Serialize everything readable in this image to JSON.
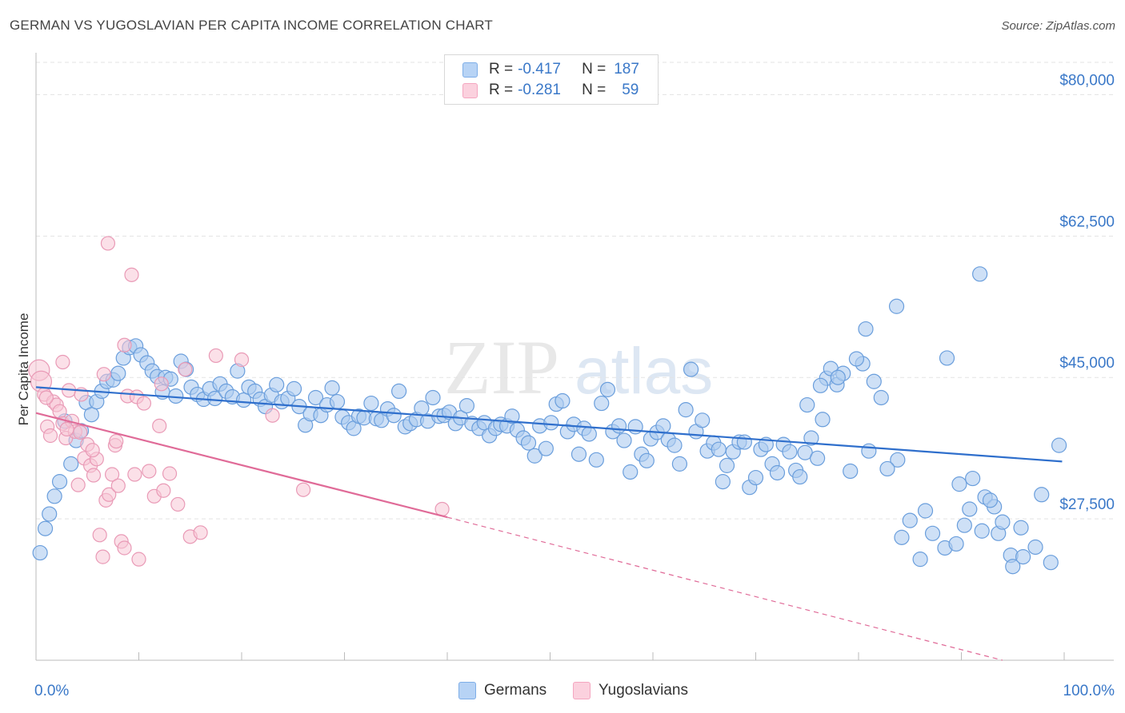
{
  "header": {
    "title": "GERMAN VS YUGOSLAVIAN PER CAPITA INCOME CORRELATION CHART",
    "source": "Source: ZipAtlas.com"
  },
  "watermark": {
    "zip": "ZIP",
    "atlas": "atlas"
  },
  "legend_top": {
    "rows": [
      {
        "r_label": "R =",
        "r_value": "-0.417",
        "n_label": "N =",
        "n_value": "187",
        "color": "#7eaee8"
      },
      {
        "r_label": "R =",
        "r_value": "-0.281",
        "n_label": "N =",
        "n_value": "59",
        "color": "#f4a6c0"
      }
    ]
  },
  "legend_bottom": {
    "items": [
      "Germans",
      "Yugoslavians"
    ]
  },
  "colors": {
    "german_fill": "#aecbf0",
    "german_stroke": "#6a9edc",
    "german_line": "#2f6fcc",
    "yugo_fill": "#f7c6d6",
    "yugo_stroke": "#e99ab6",
    "yugo_line": "#e06b98",
    "tick_label": "#3a78c8",
    "grid": "#e3e3e3"
  },
  "chart_data": {
    "type": "scatter",
    "title": "GERMAN VS YUGOSLAVIAN PER CAPITA INCOME CORRELATION CHART",
    "xlabel": "",
    "ylabel": "Per Capita Income",
    "xlim": [
      0,
      100
    ],
    "ylim": [
      10000,
      84000
    ],
    "x_tick_labels": [
      "0.0%",
      "100.0%"
    ],
    "y_ticks": [
      27500,
      45000,
      62500,
      80000
    ],
    "y_tick_labels": [
      "$27,500",
      "$45,000",
      "$62,500",
      "$80,000"
    ],
    "grid": true,
    "legend_position": "bottom",
    "series": [
      {
        "name": "Germans",
        "r": -0.417,
        "n": 187,
        "trend": {
          "x": [
            0,
            99.8
          ],
          "y": [
            43800,
            34600
          ]
        },
        "points": [
          [
            0.4,
            23300
          ],
          [
            0.9,
            26300
          ],
          [
            1.3,
            28100
          ],
          [
            1.8,
            30300
          ],
          [
            2.3,
            32100
          ],
          [
            2.8,
            39600
          ],
          [
            3.4,
            34300
          ],
          [
            3.9,
            37200
          ],
          [
            4.4,
            38400
          ],
          [
            4.9,
            41900
          ],
          [
            5.4,
            40400
          ],
          [
            5.9,
            42000
          ],
          [
            6.4,
            43300
          ],
          [
            6.9,
            44500
          ],
          [
            7.5,
            44700
          ],
          [
            8.0,
            45500
          ],
          [
            8.5,
            47400
          ],
          [
            9.1,
            48700
          ],
          [
            9.7,
            48900
          ],
          [
            10.2,
            47800
          ],
          [
            10.8,
            46800
          ],
          [
            11.3,
            45800
          ],
          [
            11.8,
            45100
          ],
          [
            12.3,
            43200
          ],
          [
            12.6,
            45000
          ],
          [
            13.1,
            44800
          ],
          [
            13.6,
            42700
          ],
          [
            14.1,
            47000
          ],
          [
            14.6,
            46000
          ],
          [
            15.1,
            43800
          ],
          [
            15.7,
            42900
          ],
          [
            16.3,
            42300
          ],
          [
            16.9,
            43600
          ],
          [
            17.4,
            42400
          ],
          [
            17.9,
            44200
          ],
          [
            18.5,
            43300
          ],
          [
            19.1,
            42600
          ],
          [
            19.6,
            45800
          ],
          [
            20.2,
            42200
          ],
          [
            20.7,
            43800
          ],
          [
            21.3,
            43300
          ],
          [
            21.8,
            42300
          ],
          [
            22.3,
            41400
          ],
          [
            22.9,
            42800
          ],
          [
            23.4,
            44100
          ],
          [
            23.9,
            42000
          ],
          [
            24.5,
            42400
          ],
          [
            25.1,
            43600
          ],
          [
            25.6,
            41400
          ],
          [
            26.2,
            39100
          ],
          [
            26.7,
            40500
          ],
          [
            27.2,
            42500
          ],
          [
            27.7,
            40300
          ],
          [
            28.3,
            41600
          ],
          [
            28.8,
            43700
          ],
          [
            29.3,
            42000
          ],
          [
            29.8,
            40100
          ],
          [
            30.4,
            39400
          ],
          [
            30.9,
            38700
          ],
          [
            31.4,
            40200
          ],
          [
            31.9,
            40000
          ],
          [
            32.6,
            41800
          ],
          [
            33.1,
            39900
          ],
          [
            33.6,
            39700
          ],
          [
            34.2,
            41100
          ],
          [
            34.8,
            40300
          ],
          [
            35.3,
            43300
          ],
          [
            35.9,
            38900
          ],
          [
            36.4,
            39300
          ],
          [
            37.0,
            39800
          ],
          [
            37.5,
            41200
          ],
          [
            38.1,
            39600
          ],
          [
            38.6,
            42500
          ],
          [
            39.2,
            40200
          ],
          [
            39.7,
            40300
          ],
          [
            40.2,
            40700
          ],
          [
            40.8,
            39300
          ],
          [
            41.3,
            40000
          ],
          [
            41.9,
            41500
          ],
          [
            42.4,
            39300
          ],
          [
            43.1,
            38700
          ],
          [
            43.6,
            39400
          ],
          [
            44.1,
            37800
          ],
          [
            44.7,
            38700
          ],
          [
            45.2,
            39200
          ],
          [
            45.8,
            39000
          ],
          [
            46.3,
            40200
          ],
          [
            46.8,
            38500
          ],
          [
            47.4,
            37500
          ],
          [
            47.9,
            36900
          ],
          [
            48.5,
            35300
          ],
          [
            49.0,
            39000
          ],
          [
            49.6,
            36200
          ],
          [
            50.1,
            39400
          ],
          [
            50.6,
            41700
          ],
          [
            51.2,
            42100
          ],
          [
            51.7,
            38300
          ],
          [
            52.3,
            39200
          ],
          [
            52.8,
            35500
          ],
          [
            53.3,
            38700
          ],
          [
            53.8,
            38000
          ],
          [
            54.5,
            34800
          ],
          [
            55.0,
            41800
          ],
          [
            55.6,
            43500
          ],
          [
            56.1,
            38300
          ],
          [
            56.7,
            39000
          ],
          [
            57.2,
            37200
          ],
          [
            57.8,
            33300
          ],
          [
            58.3,
            38900
          ],
          [
            58.9,
            35500
          ],
          [
            59.4,
            34700
          ],
          [
            59.8,
            37400
          ],
          [
            60.4,
            38200
          ],
          [
            61.0,
            39000
          ],
          [
            61.5,
            37300
          ],
          [
            62.1,
            36600
          ],
          [
            62.6,
            34300
          ],
          [
            63.2,
            41000
          ],
          [
            63.7,
            46000
          ],
          [
            64.2,
            38300
          ],
          [
            64.8,
            39700
          ],
          [
            65.3,
            35900
          ],
          [
            65.9,
            36900
          ],
          [
            66.4,
            36100
          ],
          [
            66.8,
            32100
          ],
          [
            67.2,
            34100
          ],
          [
            67.8,
            35800
          ],
          [
            68.4,
            37000
          ],
          [
            68.9,
            37000
          ],
          [
            69.4,
            31400
          ],
          [
            70.0,
            32600
          ],
          [
            70.5,
            36100
          ],
          [
            71.0,
            36700
          ],
          [
            71.6,
            34300
          ],
          [
            72.1,
            33200
          ],
          [
            72.7,
            36700
          ],
          [
            73.3,
            35800
          ],
          [
            73.9,
            33500
          ],
          [
            74.3,
            32700
          ],
          [
            74.8,
            35700
          ],
          [
            75.4,
            37500
          ],
          [
            76.0,
            35000
          ],
          [
            76.5,
            39800
          ],
          [
            76.9,
            44900
          ],
          [
            77.3,
            46100
          ],
          [
            77.9,
            44100
          ],
          [
            78.5,
            45500
          ],
          [
            79.2,
            33400
          ],
          [
            80.4,
            46700
          ],
          [
            81.0,
            35900
          ],
          [
            82.2,
            42500
          ],
          [
            83.8,
            34800
          ],
          [
            86.0,
            22500
          ],
          [
            87.2,
            25700
          ],
          [
            88.4,
            23900
          ],
          [
            89.8,
            31800
          ],
          [
            91.1,
            32500
          ],
          [
            92.3,
            30200
          ],
          [
            93.6,
            25700
          ],
          [
            94.8,
            23000
          ],
          [
            80.7,
            51000
          ],
          [
            83.7,
            53800
          ],
          [
            88.6,
            47400
          ],
          [
            91.8,
            57800
          ],
          [
            85.0,
            27300
          ],
          [
            86.5,
            28500
          ],
          [
            89.5,
            24400
          ],
          [
            90.3,
            26700
          ],
          [
            92.0,
            26000
          ],
          [
            93.2,
            29000
          ],
          [
            95.0,
            21600
          ],
          [
            96.0,
            22800
          ],
          [
            97.2,
            24000
          ],
          [
            98.7,
            22100
          ],
          [
            99.5,
            36600
          ],
          [
            97.8,
            30500
          ],
          [
            95.8,
            26400
          ],
          [
            94.0,
            27100
          ],
          [
            92.8,
            29800
          ],
          [
            90.8,
            28700
          ],
          [
            84.2,
            25200
          ],
          [
            82.8,
            33700
          ],
          [
            81.5,
            44500
          ],
          [
            79.8,
            47300
          ],
          [
            78.0,
            45000
          ],
          [
            76.3,
            44000
          ],
          [
            75.0,
            41600
          ]
        ]
      },
      {
        "name": "Yugoslavians",
        "r": -0.281,
        "n": 59,
        "trend": {
          "x": [
            0,
            40
          ],
          "y": [
            40600,
            27700
          ]
        },
        "trend_dashed": {
          "x": [
            40,
            94
          ],
          "y": [
            27700,
            10000
          ]
        },
        "points": [
          [
            0.3,
            45900
          ],
          [
            0.5,
            44500
          ],
          [
            0.8,
            42900
          ],
          [
            1.1,
            38900
          ],
          [
            1.4,
            37800
          ],
          [
            1.7,
            42000
          ],
          [
            2.0,
            41600
          ],
          [
            2.3,
            40800
          ],
          [
            2.6,
            39300
          ],
          [
            2.9,
            37500
          ],
          [
            3.2,
            43400
          ],
          [
            3.5,
            39600
          ],
          [
            3.8,
            38300
          ],
          [
            4.1,
            31700
          ],
          [
            4.4,
            42900
          ],
          [
            4.7,
            35000
          ],
          [
            5.0,
            36700
          ],
          [
            5.3,
            34100
          ],
          [
            5.6,
            32900
          ],
          [
            5.9,
            34900
          ],
          [
            6.2,
            25500
          ],
          [
            6.5,
            22800
          ],
          [
            6.8,
            29800
          ],
          [
            7.1,
            30500
          ],
          [
            7.4,
            33000
          ],
          [
            7.7,
            36600
          ],
          [
            8.0,
            31600
          ],
          [
            8.3,
            24700
          ],
          [
            8.6,
            23900
          ],
          [
            8.9,
            42700
          ],
          [
            9.3,
            57700
          ],
          [
            9.6,
            33000
          ],
          [
            10.0,
            22500
          ],
          [
            11.0,
            33400
          ],
          [
            11.5,
            30300
          ],
          [
            12.0,
            39000
          ],
          [
            12.4,
            31000
          ],
          [
            13.0,
            33100
          ],
          [
            13.8,
            29300
          ],
          [
            15.0,
            25300
          ],
          [
            16.0,
            25800
          ],
          [
            20.0,
            47200
          ],
          [
            23.0,
            40300
          ],
          [
            26.0,
            31100
          ],
          [
            39.5,
            28700
          ],
          [
            7.0,
            61600
          ],
          [
            8.6,
            49000
          ],
          [
            4.3,
            38200
          ],
          [
            2.6,
            46900
          ],
          [
            6.6,
            45400
          ],
          [
            9.8,
            42600
          ],
          [
            12.2,
            44200
          ],
          [
            1.0,
            42500
          ],
          [
            3.0,
            38600
          ],
          [
            5.5,
            36000
          ],
          [
            7.8,
            37100
          ],
          [
            10.5,
            41800
          ],
          [
            14.5,
            46000
          ],
          [
            17.5,
            47700
          ]
        ]
      }
    ]
  }
}
